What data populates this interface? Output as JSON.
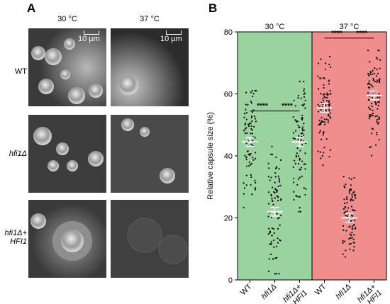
{
  "panel_a": {
    "letter": "A",
    "columns": [
      "30 °C",
      "37 °C"
    ],
    "rows": [
      {
        "label_main": "WT",
        "label_sub": ""
      },
      {
        "label_main": "hfi1Δ",
        "label_sub": ""
      },
      {
        "label_main": "hfi1Δ+",
        "label_sub": "HFI1"
      }
    ],
    "scale_bar": "10 µm"
  },
  "panel_b": {
    "letter": "B"
  },
  "chart_data": {
    "type": "scatter",
    "groups": [
      "30 °C",
      "37 °C"
    ],
    "group_colors": [
      "#9bd3a0",
      "#f08e8e"
    ],
    "categories": [
      "WT",
      "hfi1Δ",
      "hfi1Δ+ HFI1",
      "WT",
      "hfi1Δ",
      "hfi1Δ+ HFI1"
    ],
    "means": [
      44.5,
      22.0,
      44.5,
      55.5,
      20.0,
      59.5
    ],
    "ranges": [
      [
        23,
        61
      ],
      [
        2,
        43
      ],
      [
        22,
        64
      ],
      [
        37,
        72
      ],
      [
        4,
        37
      ],
      [
        40,
        74
      ]
    ],
    "significance": [
      "****",
      "****",
      "****",
      "****"
    ],
    "ylabel": "Relative capsule size (%)",
    "ylim": [
      0,
      80
    ],
    "yticks": [
      0,
      20,
      40,
      60,
      80
    ]
  }
}
